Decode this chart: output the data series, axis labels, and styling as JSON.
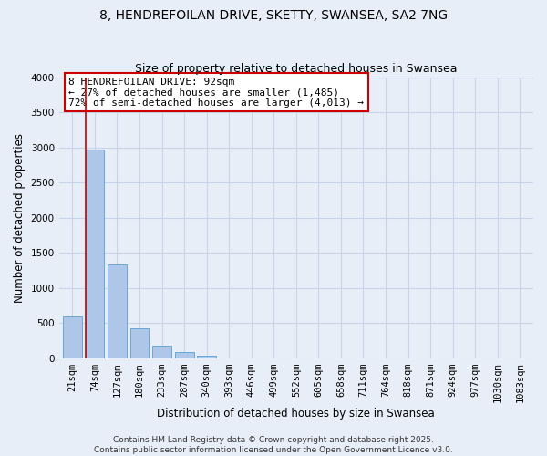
{
  "title": "8, HENDREFOILAN DRIVE, SKETTY, SWANSEA, SA2 7NG",
  "subtitle": "Size of property relative to detached houses in Swansea",
  "xlabel": "Distribution of detached houses by size in Swansea",
  "ylabel": "Number of detached properties",
  "bar_labels": [
    "21sqm",
    "74sqm",
    "127sqm",
    "180sqm",
    "233sqm",
    "287sqm",
    "340sqm",
    "393sqm",
    "446sqm",
    "499sqm",
    "552sqm",
    "605sqm",
    "658sqm",
    "711sqm",
    "764sqm",
    "818sqm",
    "871sqm",
    "924sqm",
    "977sqm",
    "1030sqm",
    "1083sqm"
  ],
  "bar_values": [
    600,
    2970,
    1330,
    420,
    175,
    90,
    40,
    0,
    0,
    0,
    0,
    0,
    0,
    0,
    0,
    0,
    0,
    0,
    0,
    0,
    0
  ],
  "bar_color": "#aec6e8",
  "bar_edge_color": "#5a9fd4",
  "ylim": [
    0,
    4000
  ],
  "yticks": [
    0,
    500,
    1000,
    1500,
    2000,
    2500,
    3000,
    3500,
    4000
  ],
  "vline_x_idx": 1,
  "vline_color": "#cc0000",
  "annotation_title": "8 HENDREFOILAN DRIVE: 92sqm",
  "annotation_line1": "← 27% of detached houses are smaller (1,485)",
  "annotation_line2": "72% of semi-detached houses are larger (4,013) →",
  "annotation_box_color": "#ffffff",
  "annotation_box_edge": "#cc0000",
  "footer1": "Contains HM Land Registry data © Crown copyright and database right 2025.",
  "footer2": "Contains public sector information licensed under the Open Government Licence v3.0.",
  "bg_color": "#e8eef8",
  "grid_color": "#c8d4e8",
  "title_fontsize": 10,
  "subtitle_fontsize": 9,
  "label_fontsize": 8.5,
  "tick_fontsize": 7.5,
  "annotation_fontsize": 8,
  "footer_fontsize": 6.5
}
